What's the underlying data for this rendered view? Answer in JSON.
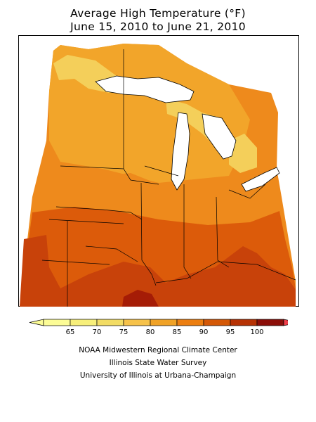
{
  "title": {
    "line1": "Average High Temperature (°F)",
    "line2": "June 15, 2010 to June 21, 2010"
  },
  "legend": {
    "unit": "°F",
    "bins": [
      {
        "label": "",
        "color": "#fcfc96"
      },
      {
        "label": "65",
        "color": "#f7ef7a"
      },
      {
        "label": "70",
        "color": "#f2dc64"
      },
      {
        "label": "75",
        "color": "#f6c24a"
      },
      {
        "label": "80",
        "color": "#f0a226"
      },
      {
        "label": "85",
        "color": "#ec7e10"
      },
      {
        "label": "90",
        "color": "#d45806"
      },
      {
        "label": "95",
        "color": "#b63204"
      },
      {
        "label": "100",
        "color": "#8c0e08"
      }
    ],
    "overflow_color": "#ef3f4a"
  },
  "regions_colors": {
    "lake": "#ffffff",
    "t75_80": "#f4cf5a",
    "t80_85": "#f2a52a",
    "t85_90": "#ee8a1c",
    "t90_95": "#dc5b0a",
    "t95_100": "#c8420a",
    "t100": "#a51c06"
  },
  "credits": [
    "NOAA Midwestern Regional Climate Center",
    "Illinois State Water Survey",
    "University of Illinois at Urbana-Champaign"
  ]
}
